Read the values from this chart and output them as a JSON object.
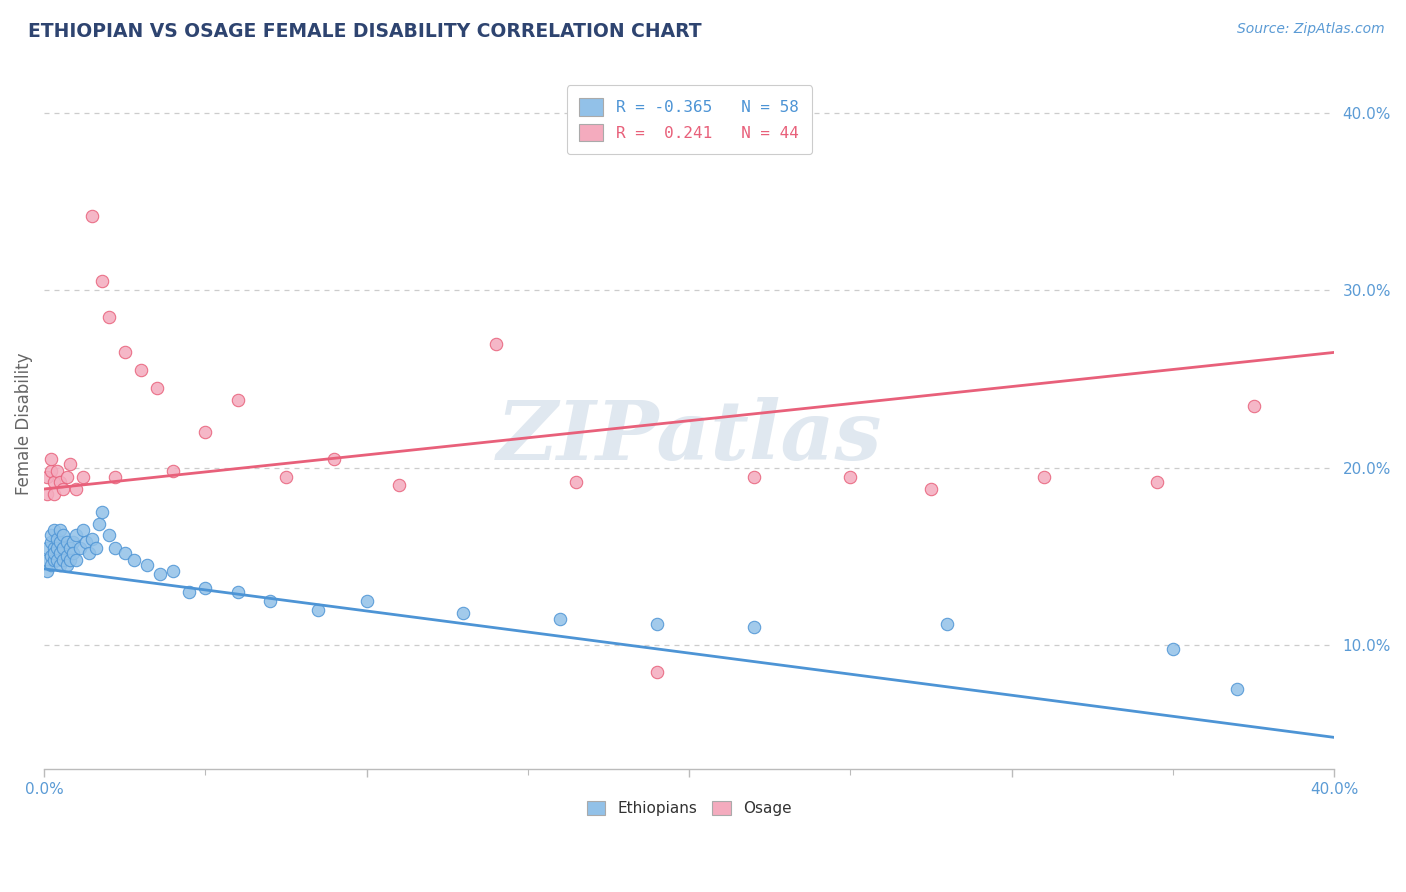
{
  "title": "ETHIOPIAN VS OSAGE FEMALE DISABILITY CORRELATION CHART",
  "source_text": "Source: ZipAtlas.com",
  "ylabel": "Female Disability",
  "xlim": [
    0.0,
    0.4
  ],
  "ylim": [
    0.03,
    0.42
  ],
  "ytick_right_vals": [
    0.1,
    0.2,
    0.3,
    0.4
  ],
  "ytick_right_labels": [
    "10.0%",
    "20.0%",
    "30.0%",
    "40.0%"
  ],
  "blue_scatter_color": "#92C1E8",
  "pink_scatter_color": "#F4ABBE",
  "blue_line_color": "#4D94D5",
  "pink_line_color": "#E8607A",
  "title_color": "#2E4470",
  "tick_label_color": "#5B9BD5",
  "source_color": "#5B9BD5",
  "axis_color": "#BBBBBB",
  "grid_color": "#CCCCCC",
  "watermark": "ZIPatlas",
  "watermark_color": "#E0E8F0",
  "blue_trend_start": 0.143,
  "blue_trend_end": 0.048,
  "pink_trend_start": 0.188,
  "pink_trend_end": 0.265,
  "blue_x": [
    0.001,
    0.001,
    0.001,
    0.002,
    0.002,
    0.002,
    0.002,
    0.003,
    0.003,
    0.003,
    0.003,
    0.004,
    0.004,
    0.004,
    0.005,
    0.005,
    0.005,
    0.005,
    0.006,
    0.006,
    0.006,
    0.007,
    0.007,
    0.007,
    0.008,
    0.008,
    0.009,
    0.009,
    0.01,
    0.01,
    0.011,
    0.012,
    0.013,
    0.014,
    0.015,
    0.016,
    0.017,
    0.018,
    0.02,
    0.022,
    0.025,
    0.028,
    0.032,
    0.036,
    0.04,
    0.045,
    0.05,
    0.06,
    0.07,
    0.085,
    0.1,
    0.13,
    0.16,
    0.19,
    0.22,
    0.28,
    0.35,
    0.37
  ],
  "blue_y": [
    0.155,
    0.148,
    0.142,
    0.158,
    0.15,
    0.145,
    0.162,
    0.155,
    0.148,
    0.165,
    0.152,
    0.16,
    0.148,
    0.155,
    0.158,
    0.145,
    0.152,
    0.165,
    0.155,
    0.148,
    0.162,
    0.15,
    0.158,
    0.145,
    0.155,
    0.148,
    0.158,
    0.152,
    0.162,
    0.148,
    0.155,
    0.165,
    0.158,
    0.152,
    0.16,
    0.155,
    0.168,
    0.175,
    0.162,
    0.155,
    0.152,
    0.148,
    0.145,
    0.14,
    0.142,
    0.13,
    0.132,
    0.13,
    0.125,
    0.12,
    0.125,
    0.118,
    0.115,
    0.112,
    0.11,
    0.112,
    0.098,
    0.075
  ],
  "pink_x": [
    0.001,
    0.001,
    0.002,
    0.002,
    0.003,
    0.003,
    0.004,
    0.005,
    0.006,
    0.007,
    0.008,
    0.01,
    0.012,
    0.015,
    0.018,
    0.02,
    0.022,
    0.025,
    0.03,
    0.035,
    0.04,
    0.05,
    0.06,
    0.075,
    0.09,
    0.11,
    0.14,
    0.165,
    0.19,
    0.22,
    0.25,
    0.275,
    0.31,
    0.345,
    0.375
  ],
  "pink_y": [
    0.195,
    0.185,
    0.198,
    0.205,
    0.192,
    0.185,
    0.198,
    0.192,
    0.188,
    0.195,
    0.202,
    0.188,
    0.195,
    0.342,
    0.305,
    0.285,
    0.195,
    0.265,
    0.255,
    0.245,
    0.198,
    0.22,
    0.238,
    0.195,
    0.205,
    0.19,
    0.27,
    0.192,
    0.085,
    0.195,
    0.195,
    0.188,
    0.195,
    0.192,
    0.235
  ]
}
